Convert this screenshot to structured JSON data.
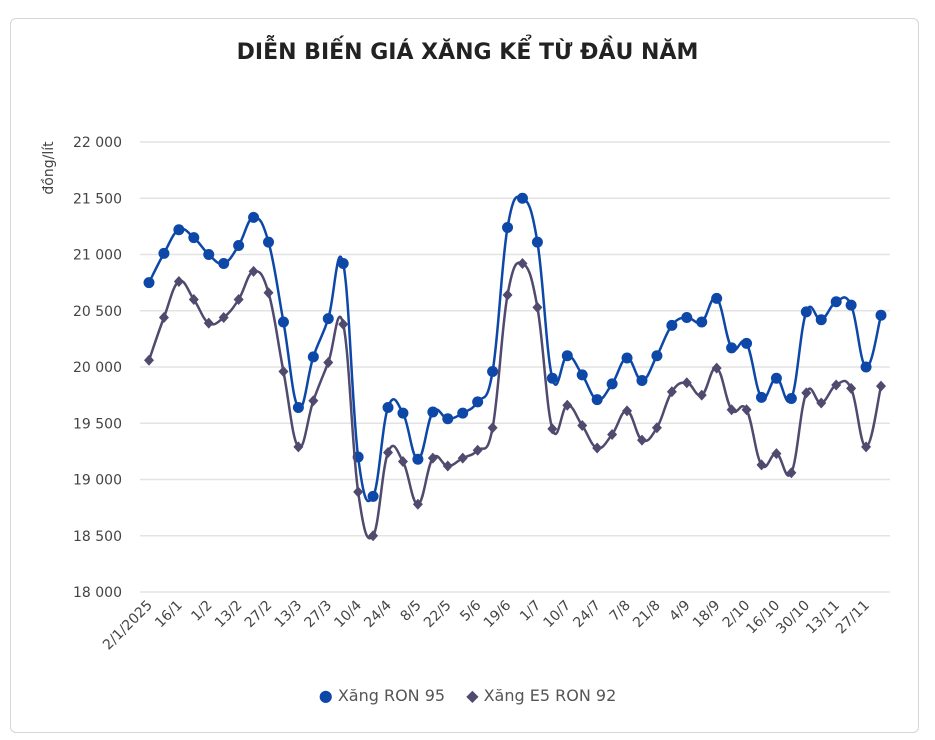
{
  "chart_data": {
    "type": "line",
    "title": "DIỄN BIẾN GIÁ XĂNG KỂ TỪ ĐẦU NĂM",
    "ylabel": "đồng/lít",
    "xlabel": "",
    "ylim": [
      18000,
      22000
    ],
    "yticks": [
      18000,
      18500,
      19000,
      19500,
      20000,
      20500,
      21000,
      21500,
      22000
    ],
    "ytick_labels": [
      "18 000",
      "18 500",
      "19 000",
      "19 500",
      "20 000",
      "20 500",
      "21 000",
      "21 500",
      "22 000"
    ],
    "grid": true,
    "legend_position": "bottom",
    "x_labels": [
      "2/1/2025",
      "16/1",
      "1/2",
      "13/2",
      "27/2",
      "13/3",
      "27/3",
      "10/4",
      "24/4",
      "8/5",
      "22/5",
      "5/6",
      "19/6",
      "1/7",
      "10/7",
      "24/7",
      "7/8",
      "21/8",
      "4/9",
      "18/9",
      "2/10",
      "16/10",
      "30/10",
      "13/11",
      "27/11"
    ],
    "series": [
      {
        "name": "Xăng RON 95",
        "color": "#0d47a8",
        "marker": "circle",
        "values": [
          20750,
          21010,
          21220,
          21150,
          21000,
          20920,
          21080,
          21330,
          21110,
          20400,
          19640,
          20090,
          20430,
          20920,
          19200,
          18850,
          19640,
          19590,
          19180,
          19600,
          19540,
          19590,
          19690,
          19960,
          21240,
          21500,
          21110,
          19900,
          20100,
          19930,
          19710,
          19850,
          20080,
          19880,
          20100,
          20370,
          20440,
          20400,
          20610,
          20170,
          20210,
          19730,
          19900,
          19720,
          20490,
          20420,
          20580,
          20550,
          20000,
          20460
        ]
      },
      {
        "name": "Xăng E5 RON 92",
        "color": "#4f4a6e",
        "marker": "diamond",
        "values": [
          20060,
          20440,
          20760,
          20600,
          20390,
          20440,
          20600,
          20850,
          20660,
          19960,
          19290,
          19700,
          20040,
          20380,
          18890,
          18500,
          19240,
          19160,
          18780,
          19190,
          19120,
          19190,
          19260,
          19460,
          20640,
          20920,
          20530,
          19450,
          19660,
          19480,
          19280,
          19400,
          19610,
          19350,
          19460,
          19780,
          19860,
          19750,
          19990,
          19620,
          19620,
          19130,
          19230,
          19060,
          19770,
          19680,
          19840,
          19810,
          19290,
          19830
        ]
      }
    ]
  }
}
